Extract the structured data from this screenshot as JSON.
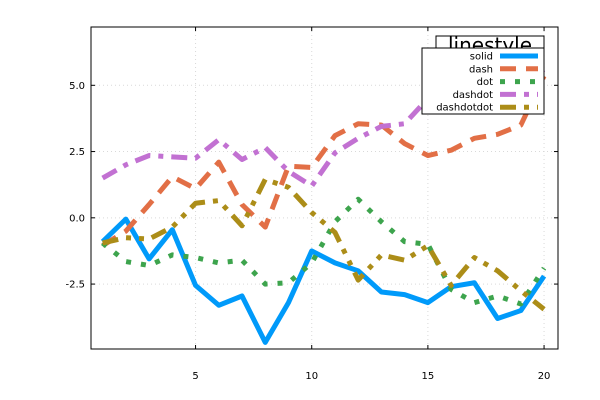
{
  "chart_data": {
    "type": "line",
    "title": "",
    "xlabel": "",
    "ylabel": "",
    "xlim": [
      0.5,
      20.6
    ],
    "ylim": [
      -4.95,
      7.2
    ],
    "x_ticks": [
      5,
      10,
      15,
      20
    ],
    "x_tick_labels": [
      "5",
      "10",
      "15",
      "20"
    ],
    "y_ticks": [
      -2.5,
      0.0,
      2.5,
      5.0
    ],
    "y_tick_labels": [
      "-2.5",
      "0.0",
      "2.5",
      "5.0"
    ],
    "grid": true,
    "legend": {
      "title": "linestyle",
      "placement": "top-right"
    },
    "x": [
      1,
      2,
      3,
      4,
      5,
      6,
      7,
      8,
      9,
      10,
      11,
      12,
      13,
      14,
      15,
      16,
      17,
      18,
      19,
      20
    ],
    "series": [
      {
        "name": "solid",
        "style": "solid",
        "color": "#009AFA",
        "values": [
          -0.9,
          -0.05,
          -1.55,
          -0.45,
          -2.55,
          -3.3,
          -2.95,
          -4.7,
          -3.2,
          -1.25,
          -1.7,
          -2.0,
          -2.8,
          -2.9,
          -3.2,
          -2.6,
          -2.45,
          -3.8,
          -3.5,
          -2.2
        ]
      },
      {
        "name": "dash",
        "style": "dash",
        "color": "#E26F46",
        "values": [
          -1.05,
          -0.5,
          0.5,
          1.55,
          1.1,
          2.1,
          0.5,
          -0.35,
          1.95,
          1.9,
          3.1,
          3.55,
          3.5,
          2.8,
          2.35,
          2.55,
          3.0,
          3.15,
          3.5,
          5.35
        ]
      },
      {
        "name": "dot",
        "style": "dot",
        "color": "#3DA44D",
        "values": [
          -0.95,
          -1.65,
          -1.8,
          -1.4,
          -1.5,
          -1.7,
          -1.6,
          -2.5,
          -2.45,
          -1.7,
          -0.15,
          0.7,
          -0.15,
          -0.9,
          -1.0,
          -2.7,
          -3.2,
          -2.95,
          -3.25,
          -1.9
        ]
      },
      {
        "name": "dashdot",
        "style": "dashdot",
        "color": "#C271D2",
        "values": [
          1.5,
          2.0,
          2.35,
          2.3,
          2.25,
          2.95,
          2.2,
          2.65,
          1.75,
          1.2,
          2.45,
          3.0,
          3.45,
          3.55,
          4.5,
          4.65,
          4.55,
          5.05,
          5.2,
          5.6
        ]
      },
      {
        "name": "dashdotdot",
        "style": "dashdotdot",
        "color": "#AC8D18",
        "values": [
          -0.95,
          -0.75,
          -0.8,
          -0.35,
          0.55,
          0.65,
          -0.3,
          1.45,
          1.15,
          0.2,
          -0.55,
          -2.35,
          -1.4,
          -1.6,
          -1.05,
          -2.55,
          -1.5,
          -2.0,
          -2.75,
          -3.45
        ]
      }
    ]
  }
}
